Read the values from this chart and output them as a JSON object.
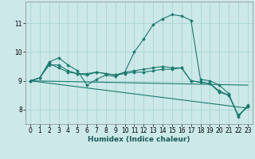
{
  "xlabel": "Humidex (Indice chaleur)",
  "bg_color": "#cce8e8",
  "grid_color": "#aad4d4",
  "line_color": "#1a7a6e",
  "xlim": [
    -0.5,
    23.5
  ],
  "ylim": [
    7.5,
    11.75
  ],
  "xticks": [
    0,
    1,
    2,
    3,
    4,
    5,
    6,
    7,
    8,
    9,
    10,
    11,
    12,
    13,
    14,
    15,
    16,
    17,
    18,
    19,
    20,
    21,
    22,
    23
  ],
  "yticks": [
    8,
    9,
    10,
    11
  ],
  "tick_fontsize": 5.5,
  "xlabel_fontsize": 6.5,
  "lines": [
    {
      "x": [
        0,
        1,
        2,
        3,
        4,
        5,
        6,
        7,
        8,
        9,
        10,
        11,
        12,
        13,
        14,
        15,
        16,
        17,
        18,
        19,
        20,
        21,
        22,
        23
      ],
      "y": [
        9.0,
        9.1,
        9.65,
        9.8,
        9.55,
        9.35,
        8.85,
        9.05,
        9.2,
        9.15,
        9.3,
        10.0,
        10.45,
        10.95,
        11.15,
        11.3,
        11.25,
        11.1,
        9.05,
        9.0,
        8.85,
        8.55,
        7.75,
        8.15
      ],
      "marker": true
    },
    {
      "x": [
        0,
        1,
        2,
        3,
        4,
        5,
        6,
        7,
        8,
        9,
        10,
        11,
        12,
        13,
        14,
        15,
        16,
        17,
        18,
        19,
        20,
        21,
        22,
        23
      ],
      "y": [
        9.0,
        9.1,
        9.6,
        9.45,
        9.3,
        9.25,
        9.2,
        9.3,
        9.25,
        9.2,
        9.25,
        9.3,
        9.3,
        9.35,
        9.4,
        9.4,
        9.45,
        9.0,
        8.95,
        8.9,
        8.6,
        8.5,
        7.8,
        8.1
      ],
      "marker": true
    },
    {
      "x": [
        0,
        1,
        2,
        3,
        4,
        5,
        6,
        7,
        8,
        9,
        10,
        11,
        12,
        13,
        14,
        15,
        16,
        17,
        18,
        19,
        20,
        21,
        22,
        23
      ],
      "y": [
        9.0,
        9.1,
        9.55,
        9.55,
        9.35,
        9.25,
        9.25,
        9.3,
        9.25,
        9.2,
        9.3,
        9.35,
        9.4,
        9.45,
        9.5,
        9.45,
        9.45,
        9.0,
        8.95,
        8.9,
        8.65,
        8.5,
        7.8,
        8.1
      ],
      "marker": true
    },
    {
      "x": [
        0,
        23
      ],
      "y": [
        9.0,
        8.85
      ],
      "marker": false
    },
    {
      "x": [
        0,
        23
      ],
      "y": [
        9.0,
        8.05
      ],
      "marker": false
    }
  ]
}
